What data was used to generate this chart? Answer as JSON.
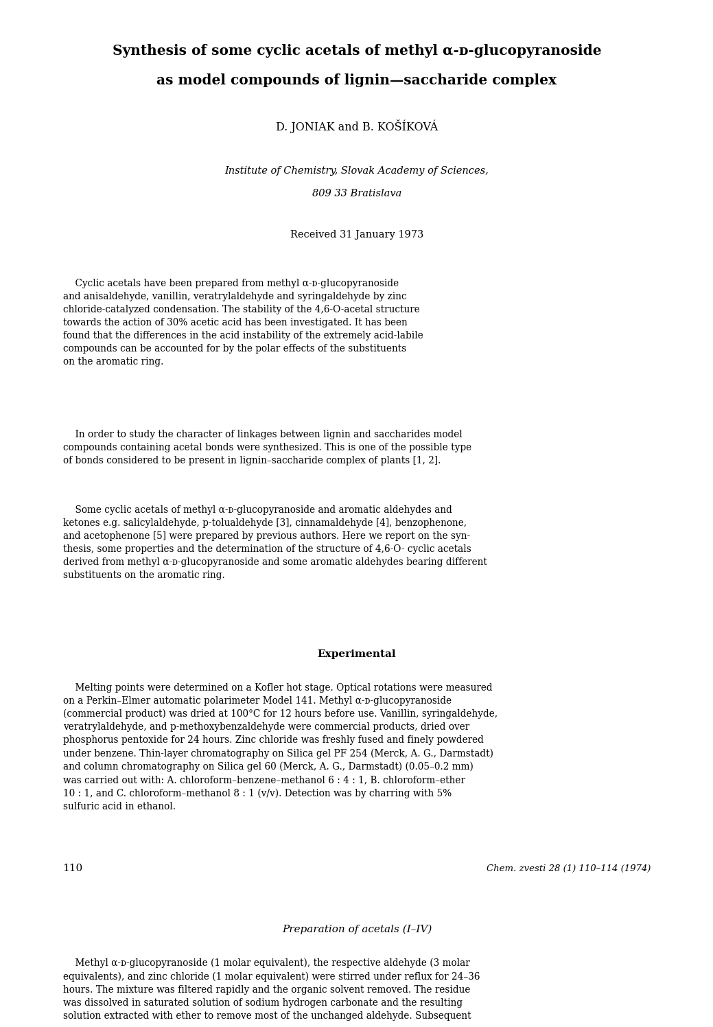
{
  "page_width": 10.2,
  "page_height": 14.65,
  "background": "#ffffff",
  "title_line1": "Synthesis of some cyclic acetals of methyl α-ᴅ-glucopyranoside",
  "title_line2": "as model compounds of lignin—saccharide complex",
  "authors": "D. JONIAK and B. KOŠÍKOVÁ",
  "affiliation_line1": "Institute of Chemistry, Slovak Academy of Sciences,",
  "affiliation_line2": "809 33 Bratislava",
  "received": "Received 31 January 1973",
  "abstract_text": "    Cyclic acetals have been prepared from methyl α-ᴅ-glucopyranoside\nand anisaldehyde, vanillin, veratrylaldehyde and syringaldehyde by zinc\nchloride-catalyzed condensation. The stability of the 4,6-O-acetal structure\ntowards the action of 30% acetic acid has been investigated. It has been\nfound that the differences in the acid instability of the extremely acid-labile\ncompounds can be accounted for by the polar effects of the substituents\non the aromatic ring.",
  "para1_text": "    In order to study the character of linkages between lignin and saccharides model\ncompounds containing acetal bonds were synthesized. This is one of the possible type\nof bonds considered to be present in lignin–saccharide complex of plants [1, 2].",
  "para2_text": "    Some cyclic acetals of methyl α-ᴅ-glucopyranoside and aromatic aldehydes and\nketones e.g. salicylaldehyde, p-tolualdehyde [3], cinnamaldehyde [4], benzophenone,\nand acetophenone [5] were prepared by previous authors. Here we report on the syn-\nthesis, some properties and the determination of the structure of 4,6-O- cyclic acetals\nderived from methyl α-ᴅ-glucopyranoside and some aromatic aldehydes bearing different\nsubstituents on the aromatic ring.",
  "section_experimental": "Experimental",
  "exp_text": "    Melting points were determined on a Kofler hot stage. Optical rotations were measured\non a Perkin–Elmer automatic polarimeter Model 141. Methyl α-ᴅ-glucopyranoside\n(commercial product) was dried at 100°C for 12 hours before use. Vanillin, syringaldehyde,\nveratrylaldehyde, and p-methoxybenzaldehyde were commercial products, dried over\nphosphorus pentoxide for 24 hours. Zinc chloride was freshly fused and finely powdered\nunder benzene. Thin-layer chromatography on Silica gel PF 254 (Merck, A. G., Darmstadt)\nand column chromatography on Silica gel 60 (Merck, A. G., Darmstadt) (0.05–0.2 mm)\nwas carried out with: A. chloroform–benzene–methanol 6 : 4 : 1, B. chloroform–ether\n10 : 1, and C. chloroform–methanol 8 : 1 (v/v). Detection was by charring with 5%\nsulfuric acid in ethanol.",
  "section_prep": "Preparation of acetals (I–IV)",
  "prep_text": "    Methyl α-ᴅ-glucopyranoside (1 molar equivalent), the respective aldehyde (3 molar\nequivalents), and zinc chloride (1 molar equivalent) were stirred under reflux for 24–36\nhours. The mixture was filtered rapidly and the organic solvent removed. The residue\nwas dissolved in saturated solution of sodium hydrogen carbonate and the resulting\nsolution extracted with ether to remove most of the unchanged aldehyde. Subsequent",
  "page_number": "110",
  "journal_ref": "Chem. zvesti 28 (1) 110–114 (1974)"
}
